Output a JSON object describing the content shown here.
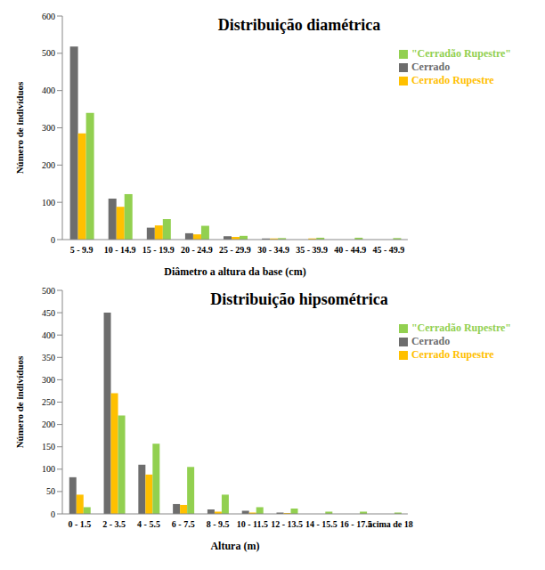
{
  "chart_data": [
    {
      "type": "bar",
      "title": "Distribuição diamétrica",
      "x_label": "Diâmetro a altura da base (cm)",
      "y_label": "Número de indivíduos",
      "categories": [
        "5 - 9.9",
        "10 - 14.9",
        "15 - 19.9",
        "20 - 24.9",
        "25 - 29.9",
        "30 - 34.9",
        "35 - 39.9",
        "40 - 44.9",
        "45 - 49.9"
      ],
      "series": [
        {
          "name": "Cerrado",
          "color": "#6d6d6d",
          "values": [
            518,
            110,
            32,
            17,
            9,
            3,
            0,
            0,
            0
          ]
        },
        {
          "name": "Cerrado Rupestre",
          "color": "#ffc000",
          "values": [
            285,
            88,
            38,
            14,
            7,
            3,
            3,
            0,
            0
          ]
        },
        {
          "name": "\"Cerradão Rupestre\"",
          "color": "#92d050",
          "values": [
            340,
            122,
            55,
            37,
            10,
            4,
            5,
            5,
            4
          ]
        }
      ],
      "ylim": [
        0,
        600
      ],
      "yticks": [
        0,
        100,
        200,
        300,
        400,
        500,
        600
      ],
      "grid": false,
      "legend": "upper right"
    },
    {
      "type": "bar",
      "title": "Distribuição hipsométrica",
      "x_label": "Altura (m)",
      "y_label": "Número de indivíduos",
      "categories": [
        "0 - 1.5",
        "2 - 3.5",
        "4 - 5.5",
        "6 - 7.5",
        "8 - 9.5",
        "10 - 11.5",
        "12 - 13.5",
        "14 - 15.5",
        "16 - 17.5",
        "acima de 18"
      ],
      "series": [
        {
          "name": "Cerrado",
          "color": "#6d6d6d",
          "values": [
            82,
            450,
            110,
            22,
            10,
            7,
            3,
            0,
            0,
            0
          ]
        },
        {
          "name": "Cerrado Rupestre",
          "color": "#ffc000",
          "values": [
            43,
            270,
            88,
            20,
            5,
            3,
            2,
            0,
            0,
            0
          ]
        },
        {
          "name": "\"Cerradão Rupestre\"",
          "color": "#92d050",
          "values": [
            15,
            220,
            157,
            105,
            43,
            15,
            12,
            5,
            5,
            3
          ]
        }
      ],
      "ylim": [
        0,
        500
      ],
      "yticks": [
        0,
        50,
        100,
        150,
        200,
        250,
        300,
        350,
        400,
        450,
        500
      ],
      "grid": false,
      "legend": "upper right"
    }
  ]
}
